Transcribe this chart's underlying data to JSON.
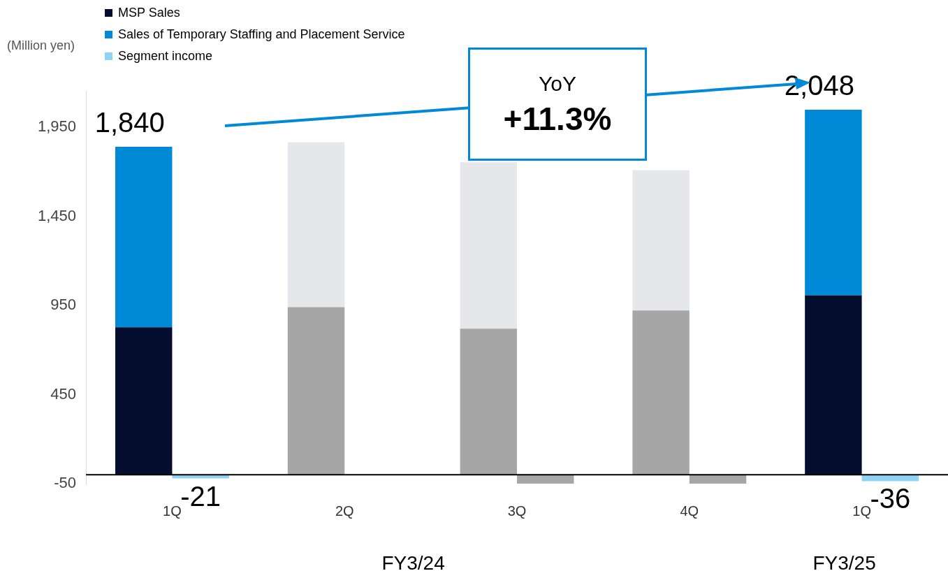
{
  "chart_data": {
    "type": "bar",
    "ylabel": "(Million yen)",
    "categories": [
      "1Q",
      "2Q",
      "3Q",
      "4Q",
      "1Q"
    ],
    "series": [
      {
        "name": "MSP Sales",
        "color": "#050e2e",
        "colors": [
          "#050e2e",
          "#a6a6a6",
          "#a6a6a6",
          "#a6a6a6",
          "#050e2e"
        ],
        "values": [
          827,
          940,
          820,
          922,
          1007
        ]
      },
      {
        "name": "Sales of Temporary Staffing and Placement Service",
        "color": "#0089d6",
        "colors": [
          "#0089d6",
          "#e6e7eb",
          "#e6e7eb",
          "#e6e7eb",
          "#0089d6"
        ],
        "values": [
          1013,
          926,
          933,
          787,
          1041
        ]
      },
      {
        "name": "Segment income",
        "color": "#8fd3f5",
        "colors": [
          "#8fd3f5",
          "#a6a6a6",
          "#a6a6a6",
          "#a6a6a6",
          "#8fd3f5"
        ],
        "values": [
          -21,
          null,
          -50,
          -50,
          -36
        ],
        "value_labels": [
          "-21",
          null,
          null,
          null,
          "-36"
        ]
      }
    ],
    "stacked": true,
    "ylim": [
      -50,
      2150
    ],
    "yticks": [
      -50,
      450,
      950,
      {
        "value": 1450,
        "label": "1,450"
      },
      {
        "value": 1950,
        "label": "1,950"
      }
    ],
    "grid": false,
    "legend": "top left",
    "annotations": [
      "YoY",
      "+11.3%",
      "FY3/24",
      "FY3/25",
      "1,840",
      "2,048"
    ]
  }
}
